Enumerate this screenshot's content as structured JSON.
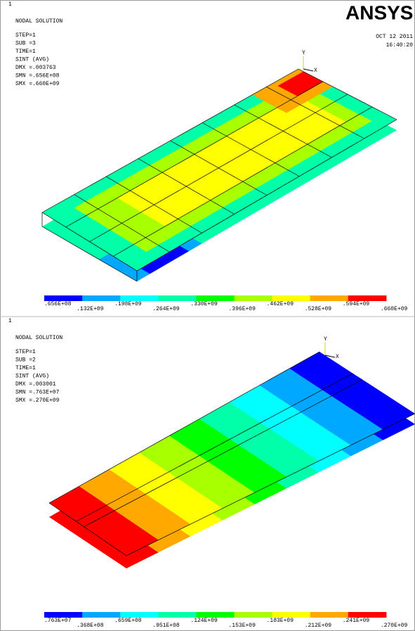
{
  "logo": "ANSYS",
  "panels": [
    {
      "index": "1",
      "title": "NODAL SOLUTION",
      "info": [
        "STEP=1",
        "SUB =3",
        "TIME=1",
        "SINT    (AVG)",
        "DMX =.003763",
        "SMN =.656E+08",
        "SMX =.660E+09"
      ],
      "date": "OCT 12 2011",
      "time": "16:40:20",
      "axes": [
        "Y",
        "X"
      ],
      "legend": [
        ".656E+08",
        ".132E+09",
        ".198E+09",
        ".264E+09",
        ".330E+09",
        ".396E+09",
        ".462E+09",
        ".528E+09",
        ".594E+09",
        ".660E+09"
      ]
    },
    {
      "index": "1",
      "title": "NODAL SOLUTION",
      "info": [
        "STEP=1",
        "SUB =2",
        "TIME=1",
        "SINT    (AVG)",
        "DMX =.003001",
        "SMN =.763E+07",
        "SMX =.270E+09"
      ],
      "axes": [
        "Y",
        "X"
      ],
      "legend": [
        ".763E+07",
        ".368E+08",
        ".659E+08",
        ".951E+08",
        ".124E+09",
        ".153E+09",
        ".183E+09",
        ".212E+09",
        ".241E+09",
        ".270E+09"
      ]
    }
  ]
}
